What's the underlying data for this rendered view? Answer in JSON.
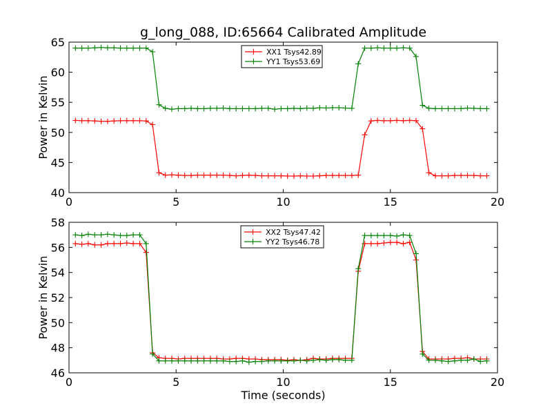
{
  "figure": {
    "title": "g_long_088, ID:65664 Calibrated Amplitude",
    "xlabel": "Time (seconds)"
  },
  "chart_data": [
    {
      "type": "line",
      "title": "g_long_088, ID:65664 Calibrated Amplitude",
      "xlabel": "",
      "ylabel": "Power in Kelvin",
      "xlim": [
        0,
        20
      ],
      "ylim": [
        40,
        65
      ],
      "xticks": [
        "0",
        "5",
        "10",
        "15",
        "20"
      ],
      "yticks": [
        "40",
        "45",
        "50",
        "55",
        "60",
        "65"
      ],
      "legend": "upper-center",
      "x": [
        0.3,
        0.6,
        0.9,
        1.2,
        1.5,
        1.8,
        2.1,
        2.4,
        2.7,
        3.0,
        3.3,
        3.6,
        3.9,
        4.2,
        4.5,
        4.8,
        5.1,
        5.4,
        5.7,
        6.0,
        6.3,
        6.6,
        6.9,
        7.2,
        7.5,
        7.8,
        8.1,
        8.4,
        8.7,
        9.0,
        9.3,
        9.6,
        9.9,
        10.2,
        10.5,
        10.8,
        11.1,
        11.4,
        11.7,
        12.0,
        12.3,
        12.6,
        12.9,
        13.2,
        13.5,
        13.8,
        14.1,
        14.4,
        14.7,
        15.0,
        15.3,
        15.6,
        15.9,
        16.2,
        16.5,
        16.8,
        17.1,
        17.4,
        17.7,
        18.0,
        18.3,
        18.6,
        18.9,
        19.2,
        19.5
      ],
      "series": [
        {
          "name": "XX1 Tsys42.89",
          "color": "#ff0000",
          "values": [
            52.0,
            51.95,
            51.95,
            51.9,
            51.85,
            51.85,
            51.9,
            51.95,
            51.95,
            51.95,
            51.95,
            51.9,
            51.3,
            43.3,
            42.9,
            42.95,
            42.9,
            42.85,
            42.85,
            42.9,
            42.9,
            42.9,
            42.9,
            42.9,
            42.85,
            42.8,
            42.85,
            42.9,
            42.85,
            42.8,
            42.8,
            42.8,
            42.8,
            42.75,
            42.75,
            42.8,
            42.75,
            42.75,
            42.8,
            42.85,
            42.85,
            42.85,
            42.85,
            42.85,
            42.9,
            49.6,
            51.9,
            52.0,
            51.95,
            51.95,
            52.0,
            51.95,
            52.0,
            51.95,
            50.6,
            43.3,
            42.8,
            42.8,
            42.8,
            42.85,
            42.85,
            42.85,
            42.85,
            42.8,
            42.8
          ]
        },
        {
          "name": "YY1 Tsys53.69",
          "color": "#008000",
          "values": [
            64.0,
            64.0,
            64.0,
            64.05,
            64.1,
            64.05,
            64.05,
            64.0,
            64.0,
            64.0,
            64.0,
            64.0,
            63.4,
            54.6,
            54.0,
            53.85,
            53.95,
            53.95,
            54.0,
            53.95,
            53.95,
            54.0,
            54.0,
            54.05,
            53.95,
            53.95,
            53.95,
            53.95,
            53.95,
            54.0,
            54.0,
            53.85,
            53.95,
            53.95,
            54.0,
            53.95,
            54.05,
            54.0,
            54.1,
            54.05,
            54.1,
            54.1,
            54.05,
            54.0,
            61.4,
            64.0,
            64.0,
            64.05,
            64.0,
            64.0,
            64.0,
            64.05,
            64.0,
            62.6,
            54.5,
            54.0,
            53.95,
            53.95,
            53.95,
            53.95,
            53.95,
            54.05,
            54.0,
            53.95,
            53.95
          ]
        }
      ]
    },
    {
      "type": "line",
      "title": "",
      "xlabel": "Time (seconds)",
      "ylabel": "Power in Kelvin",
      "xlim": [
        0,
        20
      ],
      "ylim": [
        46,
        58
      ],
      "xticks": [
        "0",
        "5",
        "10",
        "15",
        "20"
      ],
      "yticks": [
        "46",
        "48",
        "50",
        "52",
        "54",
        "56",
        "58"
      ],
      "legend": "upper-center",
      "x": [
        0.3,
        0.6,
        0.9,
        1.2,
        1.5,
        1.8,
        2.1,
        2.4,
        2.7,
        3.0,
        3.3,
        3.6,
        3.9,
        4.2,
        4.5,
        4.8,
        5.1,
        5.4,
        5.7,
        6.0,
        6.3,
        6.6,
        6.9,
        7.2,
        7.5,
        7.8,
        8.1,
        8.4,
        8.7,
        9.0,
        9.3,
        9.6,
        9.9,
        10.2,
        10.5,
        10.8,
        11.1,
        11.4,
        11.7,
        12.0,
        12.3,
        12.6,
        12.9,
        13.2,
        13.5,
        13.8,
        14.1,
        14.4,
        14.7,
        15.0,
        15.3,
        15.6,
        15.9,
        16.2,
        16.5,
        16.8,
        17.1,
        17.4,
        17.7,
        18.0,
        18.3,
        18.6,
        18.9,
        19.2,
        19.5
      ],
      "series": [
        {
          "name": "XX2 Tsys47.42",
          "color": "#ff0000",
          "values": [
            56.3,
            56.25,
            56.3,
            56.2,
            56.2,
            56.3,
            56.3,
            56.3,
            56.35,
            56.3,
            56.3,
            55.6,
            47.6,
            47.2,
            47.15,
            47.15,
            47.1,
            47.15,
            47.15,
            47.15,
            47.15,
            47.15,
            47.15,
            47.1,
            47.1,
            47.15,
            47.15,
            47.1,
            47.1,
            47.05,
            47.05,
            47.05,
            47.05,
            47.0,
            47.05,
            47.0,
            47.05,
            47.15,
            47.1,
            47.1,
            47.15,
            47.15,
            47.15,
            47.15,
            54.1,
            56.3,
            56.3,
            56.3,
            56.35,
            56.4,
            56.4,
            56.3,
            56.4,
            55.0,
            47.7,
            47.1,
            47.1,
            47.1,
            47.1,
            47.15,
            47.15,
            47.2,
            47.1,
            47.1,
            47.1
          ]
        },
        {
          "name": "YY2 Tsys46.78",
          "color": "#008000",
          "values": [
            57.0,
            56.95,
            57.05,
            57.0,
            57.0,
            57.05,
            57.0,
            56.95,
            56.95,
            57.0,
            57.0,
            56.3,
            47.5,
            46.95,
            46.95,
            46.95,
            46.95,
            46.95,
            46.95,
            46.95,
            46.95,
            46.95,
            46.95,
            46.95,
            46.9,
            46.9,
            46.95,
            46.85,
            46.9,
            46.9,
            46.95,
            46.95,
            46.95,
            46.95,
            46.95,
            47.0,
            46.95,
            47.0,
            47.05,
            47.0,
            47.05,
            47.05,
            47.0,
            47.0,
            54.3,
            56.95,
            56.95,
            56.95,
            56.95,
            56.95,
            56.9,
            57.0,
            56.95,
            55.5,
            47.5,
            47.0,
            47.0,
            46.95,
            46.9,
            46.95,
            47.0,
            47.0,
            47.1,
            46.9,
            46.95
          ]
        }
      ]
    }
  ]
}
